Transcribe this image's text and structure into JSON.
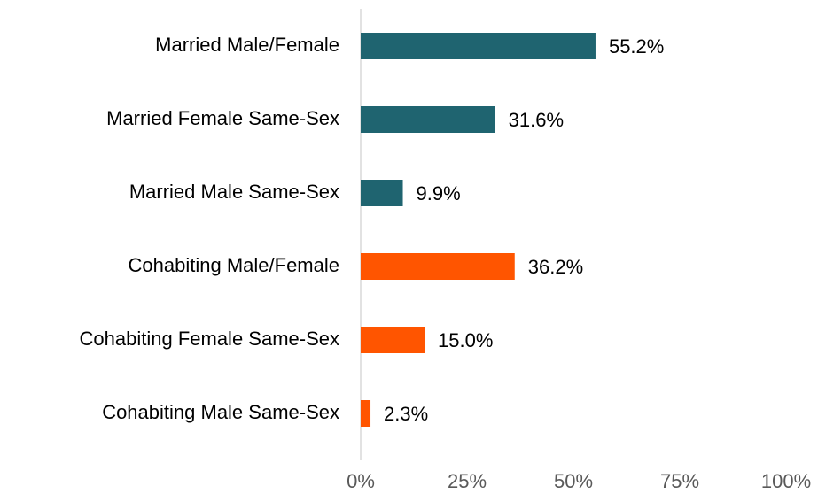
{
  "chart_data": {
    "type": "hbar",
    "categories": [
      "Married Male/Female",
      "Married Female Same-Sex",
      "Married Male Same-Sex",
      "Cohabiting Male/Female",
      "Cohabiting Female Same-Sex",
      "Cohabiting Male Same-Sex"
    ],
    "values": [
      55.2,
      31.6,
      9.9,
      36.2,
      15.0,
      2.3
    ],
    "value_labels": [
      "55.2%",
      "31.6%",
      "9.9%",
      "36.2%",
      "15.0%",
      "2.3%"
    ],
    "colors": [
      "#1f6470",
      "#1f6470",
      "#1f6470",
      "#ff5500",
      "#ff5500",
      "#ff5500"
    ],
    "xlim": [
      0,
      100
    ],
    "xticks": [
      {
        "value": 0,
        "label": "0%"
      },
      {
        "value": 25,
        "label": "25%"
      },
      {
        "value": 50,
        "label": "50%"
      },
      {
        "value": 75,
        "label": "75%"
      },
      {
        "value": 100,
        "label": "100%"
      }
    ],
    "grid": false
  }
}
